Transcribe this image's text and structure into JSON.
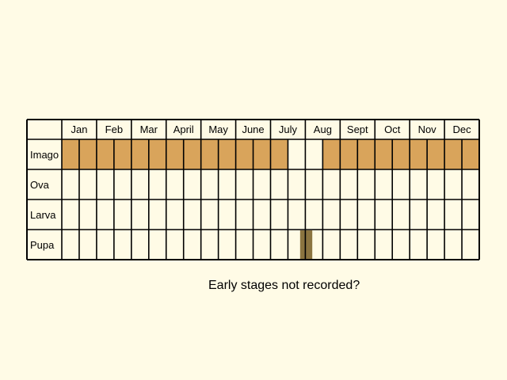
{
  "months": [
    "Jan",
    "Feb",
    "Mar",
    "April",
    "May",
    "June",
    "July",
    "Aug",
    "Sept",
    "Oct",
    "Nov",
    "Dec"
  ],
  "stages": [
    {
      "label": "Imago",
      "cells": [
        1,
        1,
        1,
        1,
        1,
        1,
        1,
        1,
        1,
        1,
        1,
        1,
        1,
        0,
        0,
        1,
        1,
        1,
        1,
        1,
        1,
        1,
        1,
        1
      ]
    },
    {
      "label": "Ova",
      "cells": [
        0,
        0,
        0,
        0,
        0,
        0,
        0,
        0,
        0,
        0,
        0,
        0,
        0,
        0,
        0,
        0,
        0,
        0,
        0,
        0,
        0,
        0,
        0,
        0
      ]
    },
    {
      "label": "Larva",
      "cells": [
        0,
        0,
        0,
        0,
        0,
        0,
        0,
        0,
        0,
        0,
        0,
        0,
        0,
        0,
        0,
        0,
        0,
        0,
        0,
        0,
        0,
        0,
        0,
        0
      ]
    },
    {
      "label": "Pupa",
      "cells": [
        0,
        0,
        0,
        0,
        0,
        0,
        0,
        0,
        0,
        0,
        0,
        0,
        0,
        0,
        0,
        0,
        0,
        0,
        0,
        0,
        0,
        0,
        0,
        0
      ],
      "bar_month_fraction": [
        6.85,
        7.2
      ]
    }
  ],
  "colors": {
    "adult": "#d9a45b",
    "pupa": "#8b7440",
    "background": "#fffbe6",
    "grid": "#000000"
  },
  "note": "Early stages not recorded?"
}
